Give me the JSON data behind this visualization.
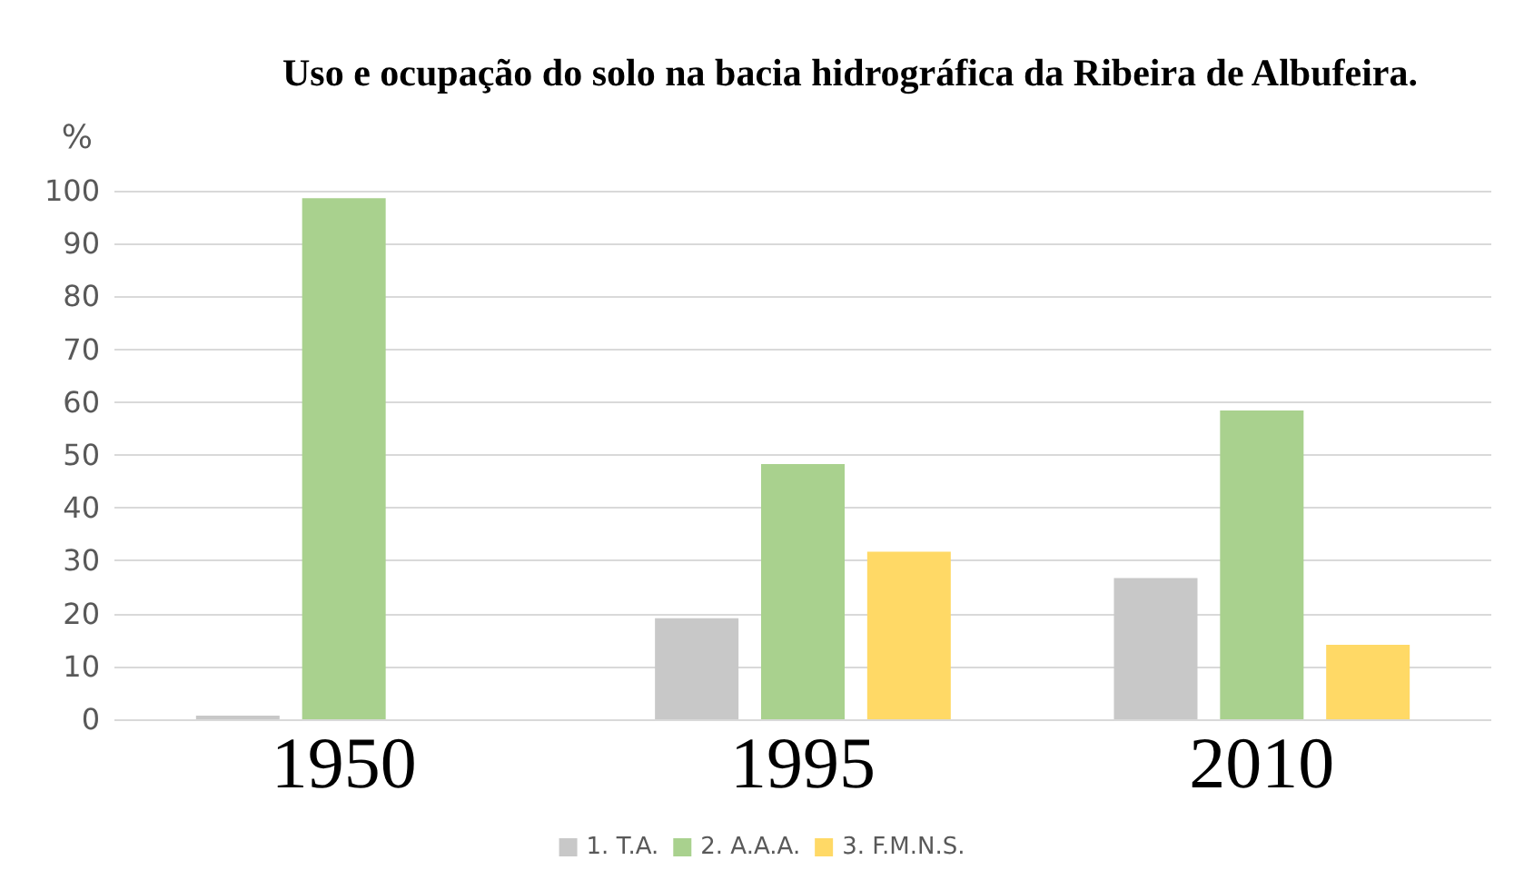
{
  "chart_data": {
    "type": "bar",
    "title": "Uso e ocupação do solo na bacia hidrográfica da Ribeira de Albufeira.",
    "ylabel": "%",
    "categories": [
      "1950",
      "1995",
      "2010"
    ],
    "series": [
      {
        "name": "1. T.A.",
        "color": "#c8c8c8",
        "values": [
          0.5,
          19.1,
          26.7
        ]
      },
      {
        "name": "2. A.A.A.",
        "color": "#a9d18e",
        "values": [
          98.6,
          48.3,
          58.4
        ]
      },
      {
        "name": "3. F.M.N.S.",
        "color": "#ffd966",
        "values": [
          null,
          31.7,
          14.1
        ]
      }
    ],
    "ylim": [
      0,
      100
    ],
    "yticks": [
      0,
      10,
      20,
      30,
      40,
      50,
      60,
      70,
      80,
      90,
      100
    ],
    "grid": "y",
    "legend": "bottom"
  }
}
